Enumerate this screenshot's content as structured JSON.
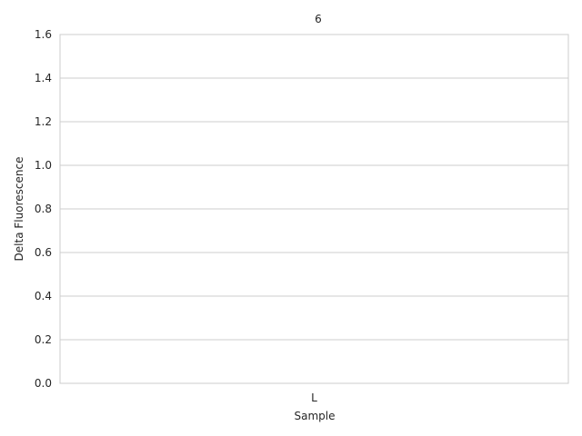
{
  "chart_data": {
    "type": "bar",
    "title": "6",
    "xlabel": "Sample",
    "ylabel": "Delta Fluorescence",
    "categories": [
      "L"
    ],
    "values": [
      0
    ],
    "ylim": [
      0,
      1.6
    ],
    "yticks": [
      0.0,
      0.2,
      0.4,
      0.6,
      0.8,
      1.0,
      1.2,
      1.4,
      1.6
    ],
    "ytick_labels": [
      "0.0",
      "0.2",
      "0.4",
      "0.6",
      "0.8",
      "1.0",
      "1.2",
      "1.4",
      "1.6"
    ],
    "grid": true,
    "grid_color": "#cccccc",
    "bar_color": "#4c72b0"
  }
}
